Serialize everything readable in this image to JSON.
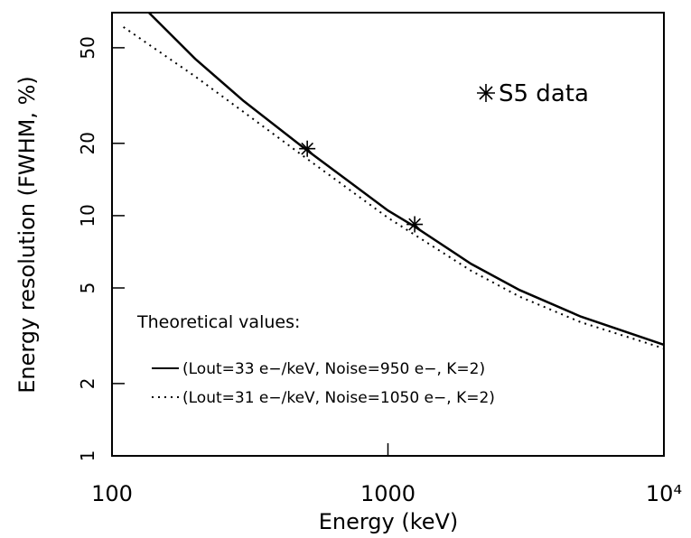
{
  "chart_data": {
    "type": "line",
    "x_label": "Energy (keV)",
    "y_label": "Energy resolution (FWHM, %)",
    "annotation": "Theoretical values:",
    "log_x": true,
    "log_y": true,
    "xlim": [
      100,
      10000
    ],
    "xticks": [
      100,
      1000,
      {
        "value": 10000,
        "label": "10⁴"
      }
    ],
    "ylim": [
      1,
      70
    ],
    "yticks": [
      1,
      2,
      5,
      10,
      20,
      50
    ],
    "series": [
      {
        "name": "(Lout=33 e−/keV, Noise=950 e−, K=2)",
        "style": "solid",
        "color": "#000000",
        "x": [
          136,
          200,
          300,
          500,
          1000,
          1250,
          2000,
          3000,
          5000,
          10000
        ],
        "values": [
          70,
          45,
          30,
          19,
          10.5,
          9,
          6.3,
          4.9,
          3.8,
          2.9
        ]
      },
      {
        "name": "(Lout=31 e−/keV, Noise=1050 e−, K=2)",
        "style": "dotted",
        "color": "#000000",
        "x": [
          110,
          200,
          300,
          500,
          1000,
          2000,
          3000,
          5000,
          10000
        ],
        "values": [
          61,
          38,
          27,
          17.5,
          9.8,
          5.9,
          4.6,
          3.6,
          2.8
        ]
      },
      {
        "name": "S5 data",
        "style": "marker",
        "color": "#000000",
        "x": [
          510,
          1250
        ],
        "values": [
          19,
          9.2
        ]
      }
    ]
  }
}
